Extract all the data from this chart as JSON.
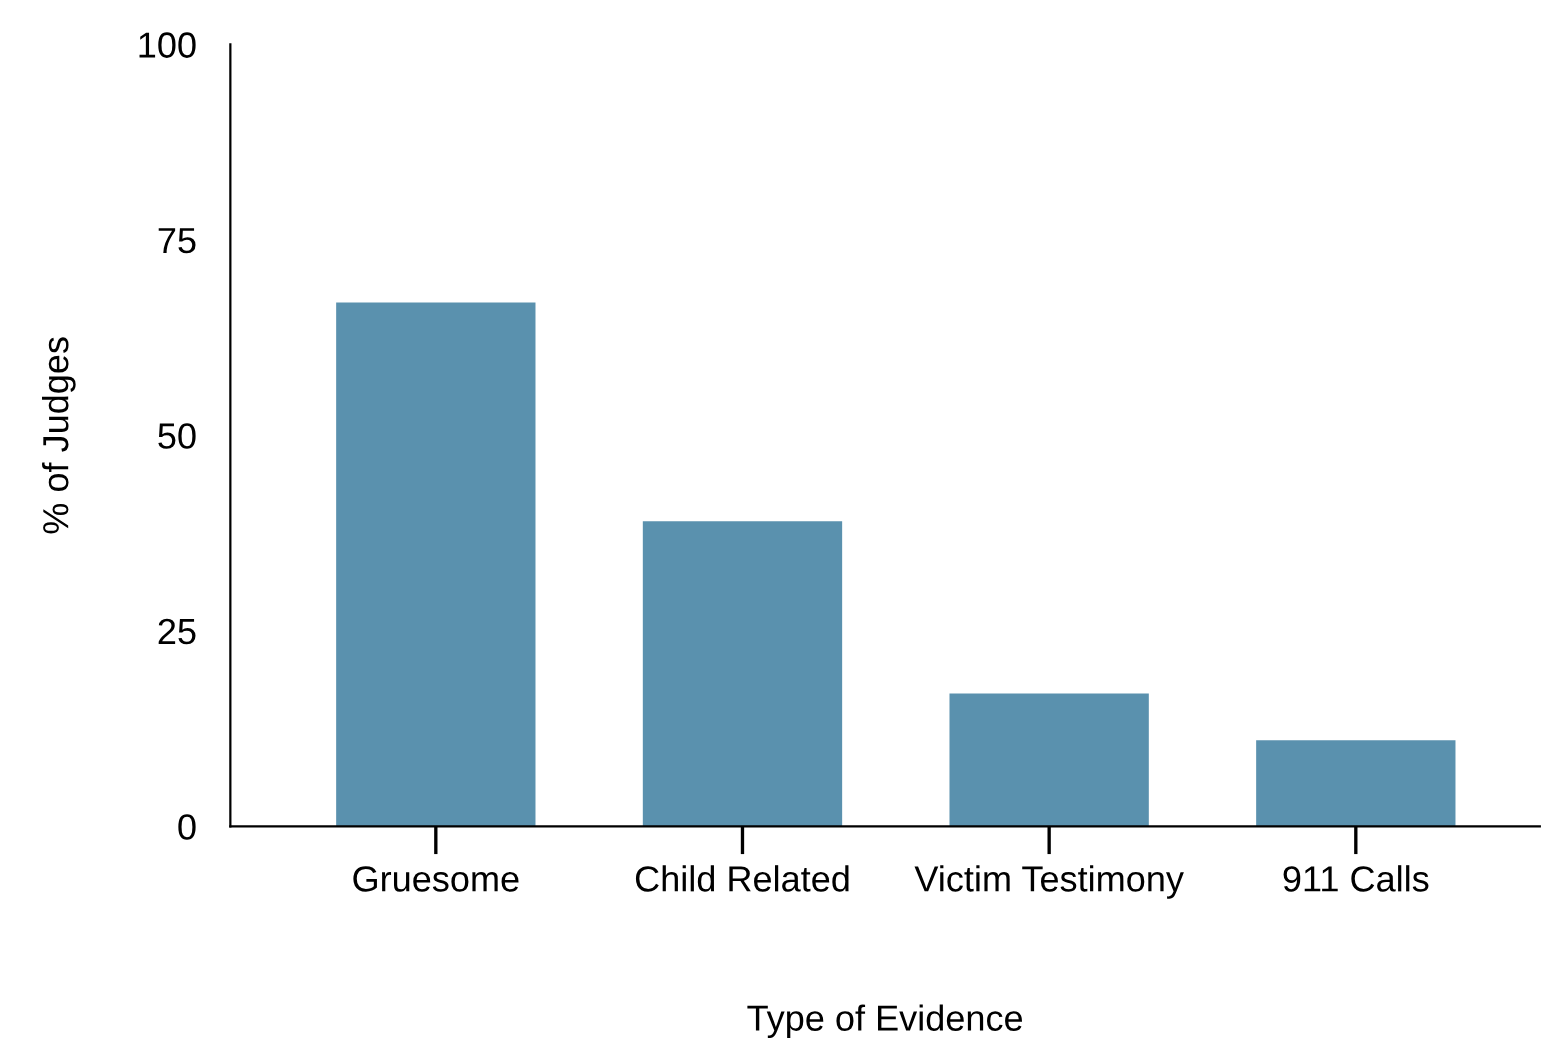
{
  "chart_data": {
    "type": "bar",
    "xlabel": "Type of Evidence",
    "ylabel": "% of Judges",
    "categories": [
      "Gruesome",
      "Child Related",
      "Victim Testimony",
      "911 Calls"
    ],
    "values": [
      67,
      39,
      17,
      11
    ],
    "color": "#5a91ae",
    "ylim": [
      0,
      100
    ],
    "yticks": [
      0,
      25,
      50,
      75,
      100
    ],
    "grid": false,
    "legend": false
  }
}
